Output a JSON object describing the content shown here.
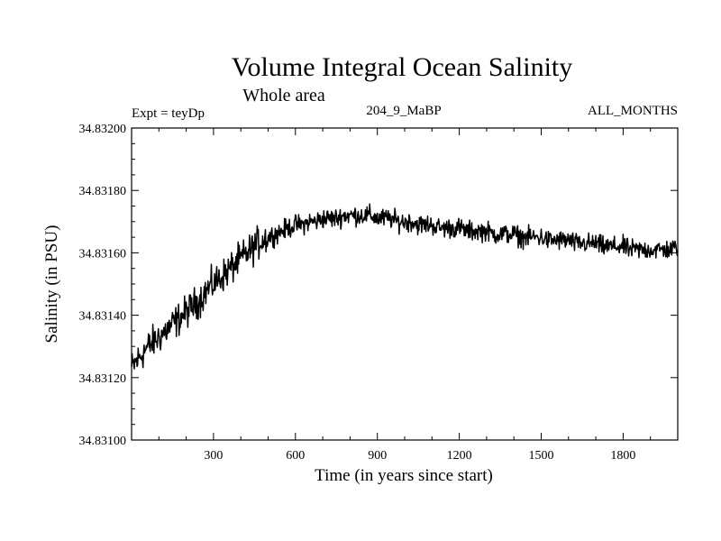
{
  "chart_data": {
    "type": "line",
    "title": "Volume Integral Ocean Salinity",
    "subtitle": "Whole area",
    "experiment": "Expt = teyDp",
    "run_label": "204_9_MaBP",
    "season": "ALL_MONTHS",
    "xlabel": "Time (in years since start)",
    "ylabel": "Salinity (in PSU)",
    "xlim": [
      0,
      2000
    ],
    "ylim": [
      34.831,
      34.832
    ],
    "x_ticks": [
      300,
      600,
      900,
      1200,
      1500,
      1800
    ],
    "x_tick_labels": [
      "300",
      "600",
      "900",
      "1200",
      "1500",
      "1800"
    ],
    "y_ticks": [
      34.831,
      34.8312,
      34.8314,
      34.8316,
      34.8318,
      34.832
    ],
    "y_tick_labels": [
      "34.83100",
      "34.83120",
      "34.83140",
      "34.83160",
      "34.83180",
      "34.83200"
    ],
    "grid": false,
    "series": [
      {
        "name": "Salinity",
        "x": [
          0,
          25,
          50,
          75,
          100,
          125,
          150,
          175,
          200,
          225,
          250,
          275,
          300,
          325,
          350,
          375,
          400,
          425,
          450,
          475,
          500,
          525,
          550,
          575,
          600,
          625,
          650,
          675,
          700,
          725,
          750,
          775,
          800,
          825,
          850,
          875,
          900,
          925,
          950,
          975,
          1000,
          1025,
          1050,
          1075,
          1100,
          1125,
          1150,
          1175,
          1200,
          1225,
          1250,
          1275,
          1300,
          1325,
          1350,
          1375,
          1400,
          1425,
          1450,
          1475,
          1500,
          1525,
          1550,
          1575,
          1600,
          1625,
          1650,
          1675,
          1700,
          1725,
          1750,
          1775,
          1800,
          1825,
          1850,
          1875,
          1900,
          1925,
          1950,
          1975,
          2000
        ],
        "y": [
          34.83123,
          34.83126,
          34.83129,
          34.83131,
          34.83133,
          34.83135,
          34.83137,
          34.83139,
          34.83141,
          34.83143,
          34.83145,
          34.83148,
          34.8315,
          34.83152,
          34.83154,
          34.83156,
          34.83158,
          34.8316,
          34.83162,
          34.83164,
          34.83165,
          34.83166,
          34.83167,
          34.83168,
          34.83169,
          34.83169,
          34.8317,
          34.8317,
          34.83171,
          34.83171,
          34.83171,
          34.83172,
          34.83172,
          34.83172,
          34.83172,
          34.83172,
          34.83171,
          34.83171,
          34.83171,
          34.8317,
          34.8317,
          34.8317,
          34.83169,
          34.83169,
          34.83169,
          34.83168,
          34.83168,
          34.83168,
          34.83168,
          34.83167,
          34.83167,
          34.83167,
          34.83167,
          34.83166,
          34.83166,
          34.83166,
          34.83166,
          34.83165,
          34.83165,
          34.83165,
          34.83165,
          34.83164,
          34.83164,
          34.83164,
          34.83164,
          34.83163,
          34.83163,
          34.83163,
          34.83163,
          34.83162,
          34.83162,
          34.83162,
          34.83162,
          34.83161,
          34.83161,
          34.83161,
          34.83161,
          34.83161,
          34.83161,
          34.83161,
          34.83162
        ],
        "noise_amplitude": 4e-05
      }
    ]
  }
}
